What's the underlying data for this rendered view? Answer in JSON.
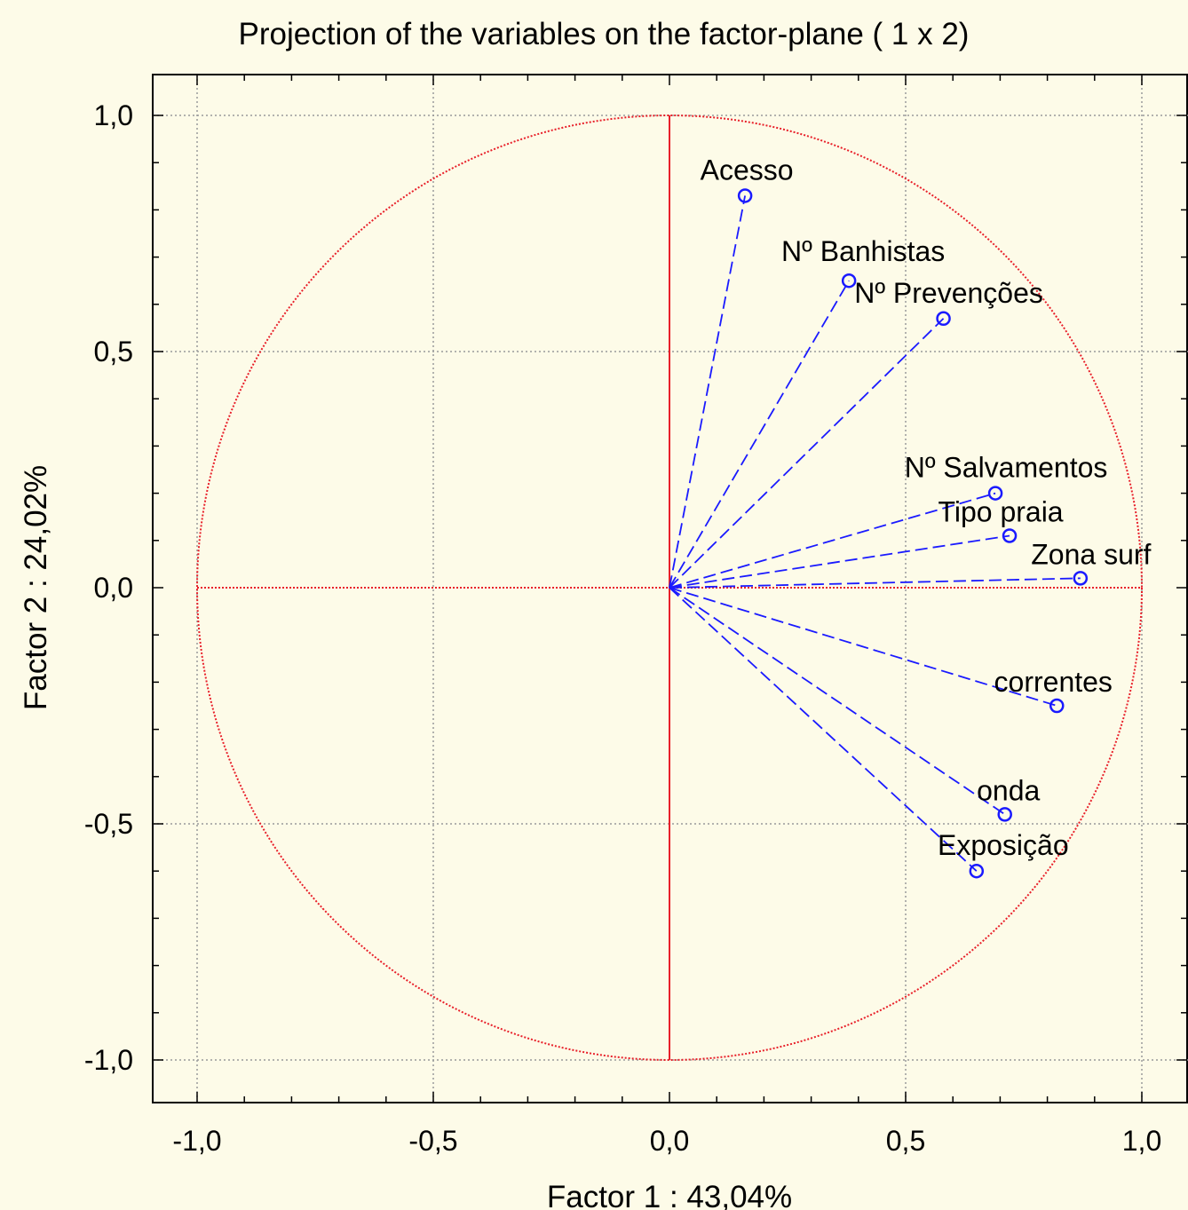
{
  "chart_data": {
    "type": "scatter",
    "title": "Projection of the variables on the factor-plane (  1 x   2)",
    "xlabel": "Factor 1 : 43,04%",
    "ylabel": "Factor 2 : 24,02%",
    "xlim": [
      -1.1,
      1.1
    ],
    "ylim": [
      -1.1,
      1.1
    ],
    "xticks": [
      -1.0,
      -0.5,
      0.0,
      0.5,
      1.0
    ],
    "yticks": [
      -1.0,
      -0.5,
      0.0,
      0.5,
      1.0
    ],
    "xtick_labels": [
      "-1,0",
      "-0,5",
      "0,0",
      "0,5",
      "1,0"
    ],
    "ytick_labels": [
      "-1,0",
      "-0,5",
      "0,0",
      "0,5",
      "1,0"
    ],
    "grid": true,
    "unit_circle": true,
    "colors": {
      "circle": "#e8202a",
      "vectors": "#1a1aff",
      "grid": "#9a9a9a",
      "background": "#fdfbe8"
    },
    "points": [
      {
        "label": "Acesso",
        "x": 0.16,
        "y": 0.83
      },
      {
        "label": "Nº Banhistas",
        "x": 0.38,
        "y": 0.65
      },
      {
        "label": "Nº Prevenções",
        "x": 0.58,
        "y": 0.57
      },
      {
        "label": "Nº Salvamentos",
        "x": 0.69,
        "y": 0.2
      },
      {
        "label": "Tipo praia",
        "x": 0.72,
        "y": 0.11
      },
      {
        "label": "Zona surf",
        "x": 0.87,
        "y": 0.02
      },
      {
        "label": "correntes",
        "x": 0.82,
        "y": -0.25
      },
      {
        "label": "onda",
        "x": 0.71,
        "y": -0.48
      },
      {
        "label": "Exposição",
        "x": 0.65,
        "y": -0.6
      }
    ]
  }
}
